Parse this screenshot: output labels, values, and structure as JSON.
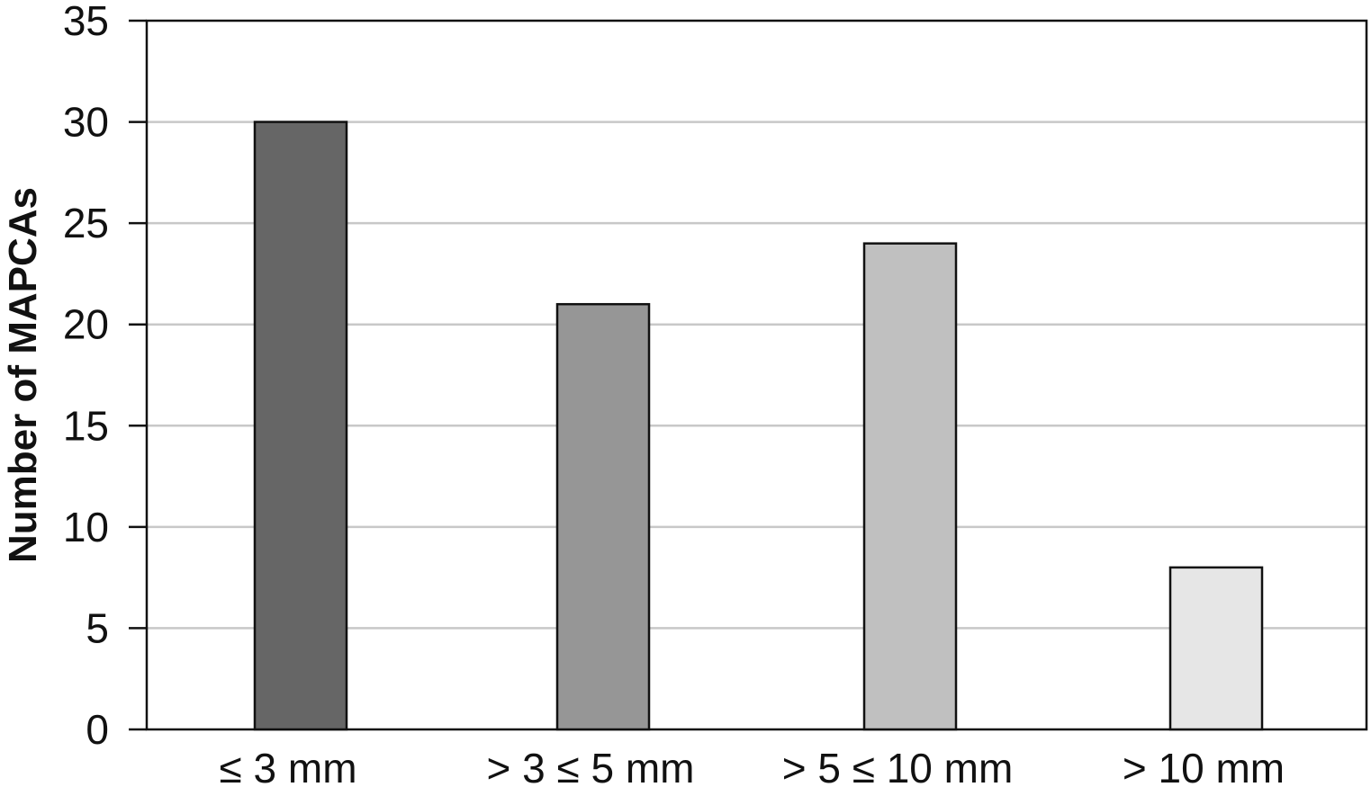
{
  "chart_data": {
    "type": "bar",
    "title": "",
    "xlabel": "",
    "ylabel": "Number of MAPCAs",
    "categories": [
      "≤ 3 mm",
      "> 3 ≤ 5 mm",
      "> 5 ≤ 10 mm",
      "> 10 mm"
    ],
    "values": [
      30,
      21,
      24,
      8
    ],
    "bar_colors": [
      "#666666",
      "#969696",
      "#c0c0c0",
      "#e6e6e6"
    ],
    "ylim": [
      0,
      35
    ],
    "yticks": [
      0,
      5,
      10,
      15,
      20,
      25,
      30,
      35
    ],
    "grid": true,
    "legend": "none"
  }
}
